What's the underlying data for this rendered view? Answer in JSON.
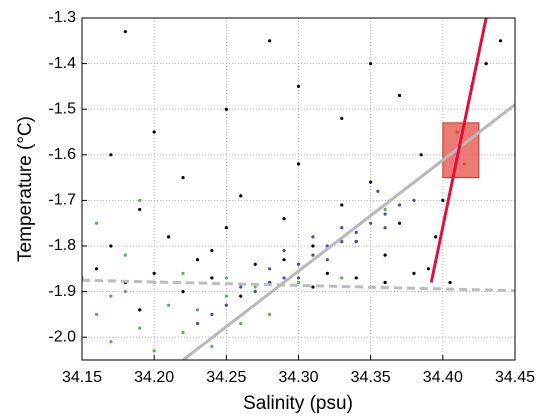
{
  "chart_data": {
    "type": "scatter",
    "x_label": "Salinity (psu)",
    "y_label": "Temperature (°C)",
    "xlim": [
      34.15,
      34.45
    ],
    "ylim": [
      -2.05,
      -1.3
    ],
    "xticks": [
      34.15,
      {
        "value": 34.2,
        "label": "34.20"
      },
      34.25,
      {
        "value": 34.3,
        "label": "34.30"
      },
      34.35,
      {
        "value": 34.4,
        "label": "34.40"
      },
      34.45
    ],
    "yticks": [
      {
        "value": -2,
        "label": "-2.0"
      },
      -1.9,
      -1.8,
      -1.7,
      -1.6,
      -1.5,
      -1.4,
      -1.3
    ],
    "grid": true,
    "series": [
      {
        "type": "scatter",
        "color": "#000000",
        "x": [
          34.16,
          34.17,
          34.18,
          34.19,
          34.2,
          34.21,
          34.22,
          34.23,
          34.24,
          34.25,
          34.26,
          34.27,
          34.28,
          34.29,
          34.3,
          34.31,
          34.32,
          34.33,
          34.34,
          34.35,
          34.36,
          34.37,
          34.38,
          34.385,
          34.39,
          34.4,
          34.41,
          34.42,
          34.43,
          34.44,
          34.17,
          34.2,
          34.25,
          34.3,
          34.35,
          34.18,
          34.28,
          34.33,
          34.37,
          34.22,
          34.26,
          34.31,
          34.36,
          34.19,
          34.24,
          34.29,
          34.34,
          34.395,
          34.415,
          34.405
        ],
        "values": [
          -1.85,
          -1.8,
          -1.88,
          -1.72,
          -1.86,
          -1.78,
          -1.65,
          -1.83,
          -1.87,
          -1.76,
          -1.69,
          -1.84,
          -1.88,
          -1.74,
          -1.62,
          -1.8,
          -1.86,
          -1.71,
          -1.87,
          -1.66,
          -1.82,
          -1.75,
          -1.86,
          -1.6,
          -1.85,
          -1.7,
          -1.55,
          -1.45,
          -1.4,
          -1.35,
          -1.6,
          -1.55,
          -1.5,
          -1.45,
          -1.4,
          -1.33,
          -1.35,
          -1.52,
          -1.47,
          -1.9,
          -1.91,
          -1.89,
          -1.88,
          -1.94,
          -1.81,
          -1.83,
          -1.79,
          -1.78,
          -1.62,
          -1.88
        ]
      },
      {
        "type": "scatter",
        "color": "#4db848",
        "x": [
          34.16,
          34.17,
          34.18,
          34.19,
          34.2,
          34.21,
          34.22,
          34.23,
          34.24,
          34.25,
          34.26,
          34.27,
          34.16,
          34.18,
          34.2,
          34.22,
          34.25,
          34.3,
          34.33,
          34.36,
          34.15,
          34.19,
          34.28,
          34.17
        ],
        "values": [
          -1.95,
          -2.01,
          -1.9,
          -1.98,
          -2.03,
          -1.93,
          -1.99,
          -1.94,
          -2.02,
          -1.91,
          -1.97,
          -1.89,
          -1.75,
          -1.82,
          -1.88,
          -1.86,
          -1.87,
          -1.88,
          -1.87,
          -1.72,
          -1.87,
          -1.7,
          -1.95,
          -1.91
        ]
      },
      {
        "type": "scatter",
        "color": "#4b4aa8",
        "x": [
          34.25,
          34.27,
          34.28,
          34.29,
          34.3,
          34.31,
          34.32,
          34.33,
          34.34,
          34.35,
          34.36,
          34.37,
          34.38,
          34.23,
          34.24,
          34.26,
          34.28,
          34.3,
          34.32,
          34.34,
          34.36,
          34.29,
          34.31,
          34.33,
          34.355
        ],
        "values": [
          -1.93,
          -1.9,
          -1.88,
          -1.87,
          -1.84,
          -1.82,
          -1.8,
          -1.79,
          -1.77,
          -1.75,
          -1.73,
          -1.71,
          -1.7,
          -1.97,
          -1.95,
          -1.89,
          -1.85,
          -1.87,
          -1.83,
          -1.79,
          -1.76,
          -1.81,
          -1.78,
          -1.76,
          -1.68
        ]
      },
      {
        "type": "line",
        "color": "#bdbdbd",
        "dash": true,
        "x": [
          34.15,
          34.45
        ],
        "values": [
          -1.875,
          -1.898
        ]
      },
      {
        "type": "line",
        "color": "#b8b8b8",
        "dash": false,
        "x": [
          34.22,
          34.45
        ],
        "values": [
          -2.05,
          -1.49
        ]
      },
      {
        "type": "line",
        "color": "#e0103a",
        "dash": false,
        "x": [
          34.392,
          34.43
        ],
        "values": [
          -1.88,
          -1.3
        ]
      }
    ],
    "highlight": {
      "color": "#e8615c",
      "x": [
        34.4,
        34.425
      ],
      "y": [
        -1.65,
        -1.53
      ]
    }
  }
}
